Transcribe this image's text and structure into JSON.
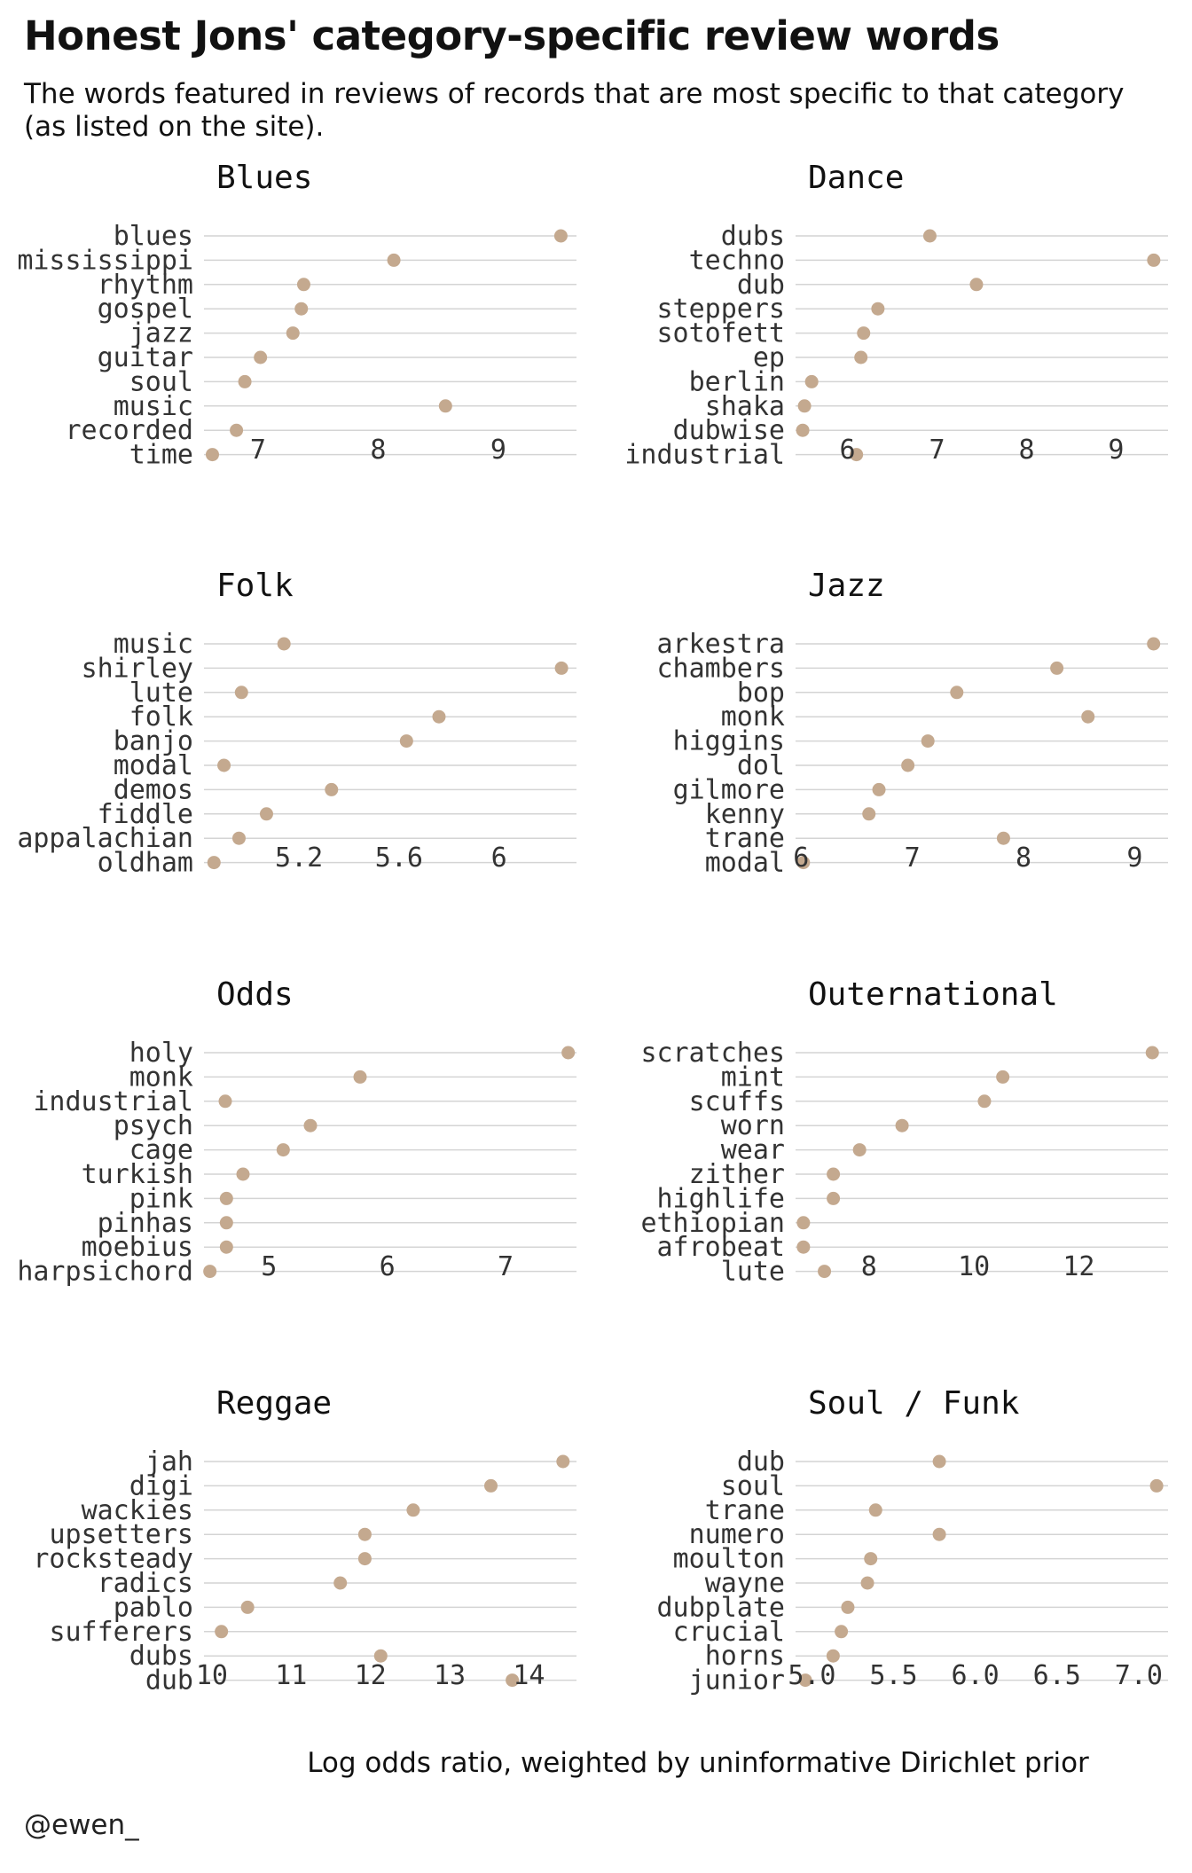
{
  "title": "Honest Jons' category-specific review words",
  "subtitle": "The words featured in reviews of records that are most specific to that category (as listed on the site).",
  "xlabel": "Log odds ratio, weighted by uninformative Dirichlet prior",
  "caption": "@ewen_",
  "dot_color": "#c4a98f",
  "chart_data": [
    {
      "type": "scatter",
      "title": "Blues",
      "categories": [
        "blues",
        "mississippi",
        "rhythm",
        "gospel",
        "jazz",
        "guitar",
        "soul",
        "music",
        "recorded",
        "time"
      ],
      "values": [
        9.52,
        8.13,
        7.38,
        7.36,
        7.29,
        7.02,
        6.89,
        8.56,
        6.82,
        6.62
      ],
      "xticks": [
        7,
        8,
        9
      ],
      "xlim": [
        6.55,
        9.65
      ]
    },
    {
      "type": "scatter",
      "title": "Dance",
      "categories": [
        "dubs",
        "techno",
        "dub",
        "steppers",
        "sotofett",
        "ep",
        "berlin",
        "shaka",
        "dubwise",
        "industrial"
      ],
      "values": [
        6.92,
        9.42,
        7.44,
        6.34,
        6.18,
        6.15,
        5.6,
        5.52,
        5.5,
        6.1
      ],
      "xticks": [
        6,
        7,
        8,
        9
      ],
      "xlim": [
        5.42,
        9.58
      ]
    },
    {
      "type": "scatter",
      "title": "Folk",
      "categories": [
        "music",
        "shirley",
        "lute",
        "folk",
        "banjo",
        "modal",
        "demos",
        "fiddle",
        "appalachian",
        "oldham"
      ],
      "values": [
        5.14,
        6.25,
        4.97,
        5.76,
        5.63,
        4.9,
        5.33,
        5.07,
        4.96,
        4.86
      ],
      "xticks": [
        5.2,
        5.6,
        6.0
      ],
      "xlim": [
        4.82,
        6.31
      ]
    },
    {
      "type": "scatter",
      "title": "Jazz",
      "categories": [
        "arkestra",
        "chambers",
        "bop",
        "monk",
        "higgins",
        "dol",
        "gilmore",
        "kenny",
        "trane",
        "modal"
      ],
      "values": [
        9.17,
        8.3,
        7.4,
        8.58,
        7.14,
        6.96,
        6.7,
        6.61,
        7.82,
        6.02
      ],
      "xticks": [
        6,
        7,
        8,
        9
      ],
      "xlim": [
        5.95,
        9.3
      ]
    },
    {
      "type": "scatter",
      "title": "Odds",
      "categories": [
        "holy",
        "monk",
        "industrial",
        "psych",
        "cage",
        "turkish",
        "pink",
        "pinhas",
        "moebius",
        "harpsichord"
      ],
      "values": [
        7.53,
        5.77,
        4.63,
        5.35,
        5.12,
        4.78,
        4.64,
        4.64,
        4.64,
        4.5
      ],
      "xticks": [
        5,
        6,
        7
      ],
      "xlim": [
        4.45,
        7.6
      ]
    },
    {
      "type": "scatter",
      "title": "Outernational",
      "categories": [
        "scratches",
        "mint",
        "scuffs",
        "worn",
        "wear",
        "zither",
        "highlife",
        "ethiopian",
        "afrobeat",
        "lute"
      ],
      "values": [
        13.4,
        10.55,
        10.2,
        8.63,
        7.82,
        7.32,
        7.32,
        6.75,
        6.75,
        7.15
      ],
      "xticks": [
        8,
        10,
        12
      ],
      "xlim": [
        6.6,
        13.7
      ]
    },
    {
      "type": "scatter",
      "title": "Reggae",
      "categories": [
        "jah",
        "digi",
        "wackies",
        "upsetters",
        "rocksteady",
        "radics",
        "pablo",
        "sufferers",
        "dubs",
        "dub"
      ],
      "values": [
        14.43,
        13.52,
        12.54,
        11.93,
        11.93,
        11.62,
        10.45,
        10.12,
        12.13,
        13.79
      ],
      "xticks": [
        10,
        11,
        12,
        13,
        14
      ],
      "xlim": [
        9.9,
        14.6
      ]
    },
    {
      "type": "scatter",
      "title": "Soul / Funk",
      "categories": [
        "dub",
        "soul",
        "trane",
        "numero",
        "moulton",
        "wayne",
        "dubplate",
        "crucial",
        "horns",
        "junior"
      ],
      "values": [
        5.78,
        7.11,
        5.39,
        5.78,
        5.36,
        5.34,
        5.22,
        5.18,
        5.13,
        4.96
      ],
      "xticks": [
        "5.0",
        "5.5",
        "6.0",
        "6.5",
        "7.0"
      ],
      "xlim": [
        4.9,
        7.18
      ]
    }
  ]
}
